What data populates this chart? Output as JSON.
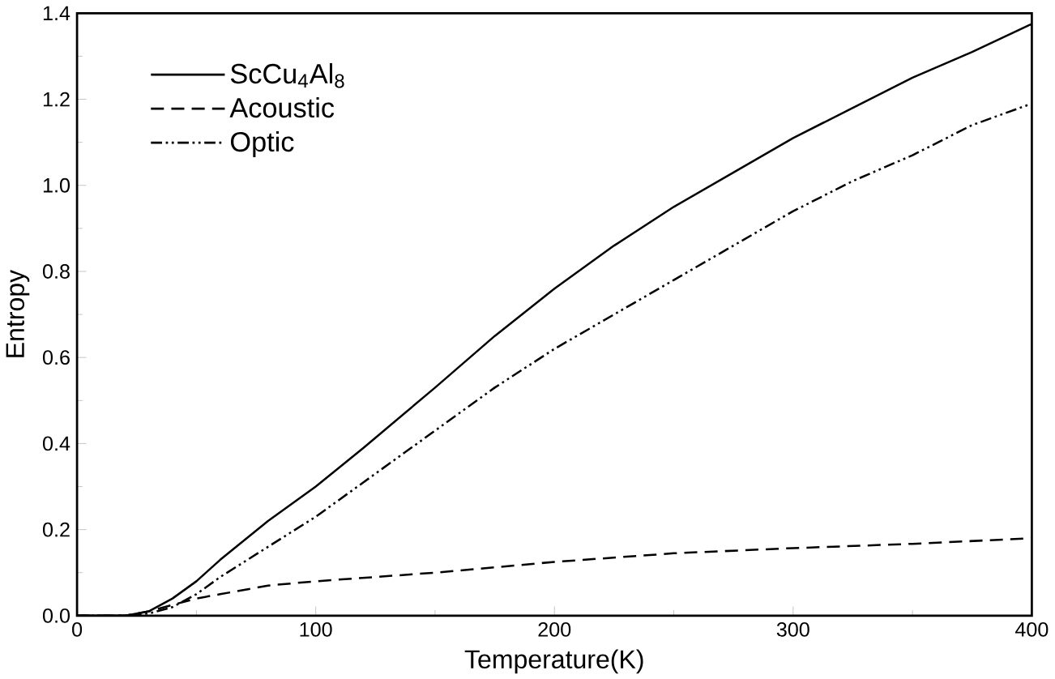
{
  "chart_data": {
    "type": "line",
    "xlabel": "Temperature(K)",
    "ylabel": "Entropy",
    "xlim": [
      0,
      400
    ],
    "xticks": [
      0,
      100,
      200,
      300,
      400
    ],
    "ylim": [
      0,
      1.4
    ],
    "yticks": [
      {
        "value": 0,
        "label": "0.0"
      },
      {
        "value": 0.2,
        "label": "0.2"
      },
      {
        "value": 0.4,
        "label": "0.4"
      },
      {
        "value": 0.6,
        "label": "0.6"
      },
      {
        "value": 0.8,
        "label": "0.8"
      },
      {
        "value": 1.0,
        "label": "1.0"
      },
      {
        "value": 1.2,
        "label": "1.2"
      },
      {
        "value": 1.4,
        "label": "1.4"
      }
    ],
    "grid": false,
    "legend": "top left",
    "marker": "none",
    "series": [
      {
        "name": "ScCu$_{4}$Al$_{8}$",
        "color": "#000000",
        "line_style": "solid",
        "x": [
          0,
          20,
          30,
          40,
          50,
          60,
          80,
          100,
          120,
          150,
          175,
          200,
          225,
          250,
          275,
          300,
          325,
          350,
          375,
          400
        ],
        "values": [
          0,
          0,
          0.01,
          0.04,
          0.08,
          0.13,
          0.22,
          0.3,
          0.39,
          0.53,
          0.65,
          0.76,
          0.86,
          0.95,
          1.03,
          1.11,
          1.18,
          1.25,
          1.31,
          1.375
        ]
      },
      {
        "name": "Acoustic",
        "color": "#000000",
        "line_style": "dashed",
        "x": [
          0,
          20,
          30,
          40,
          50,
          60,
          80,
          100,
          150,
          200,
          250,
          300,
          350,
          400
        ],
        "values": [
          0,
          0,
          0.01,
          0.025,
          0.04,
          0.05,
          0.07,
          0.08,
          0.1,
          0.125,
          0.145,
          0.157,
          0.167,
          0.18
        ]
      },
      {
        "name": "Optic",
        "color": "#000000",
        "line_style": "dashdotdotted",
        "x": [
          0,
          20,
          30,
          40,
          50,
          60,
          80,
          100,
          120,
          150,
          175,
          200,
          225,
          250,
          275,
          300,
          325,
          350,
          375,
          400
        ],
        "values": [
          0,
          0,
          0.005,
          0.02,
          0.05,
          0.09,
          0.16,
          0.23,
          0.31,
          0.43,
          0.53,
          0.62,
          0.7,
          0.78,
          0.86,
          0.94,
          1.01,
          1.07,
          1.14,
          1.19
        ]
      }
    ]
  }
}
